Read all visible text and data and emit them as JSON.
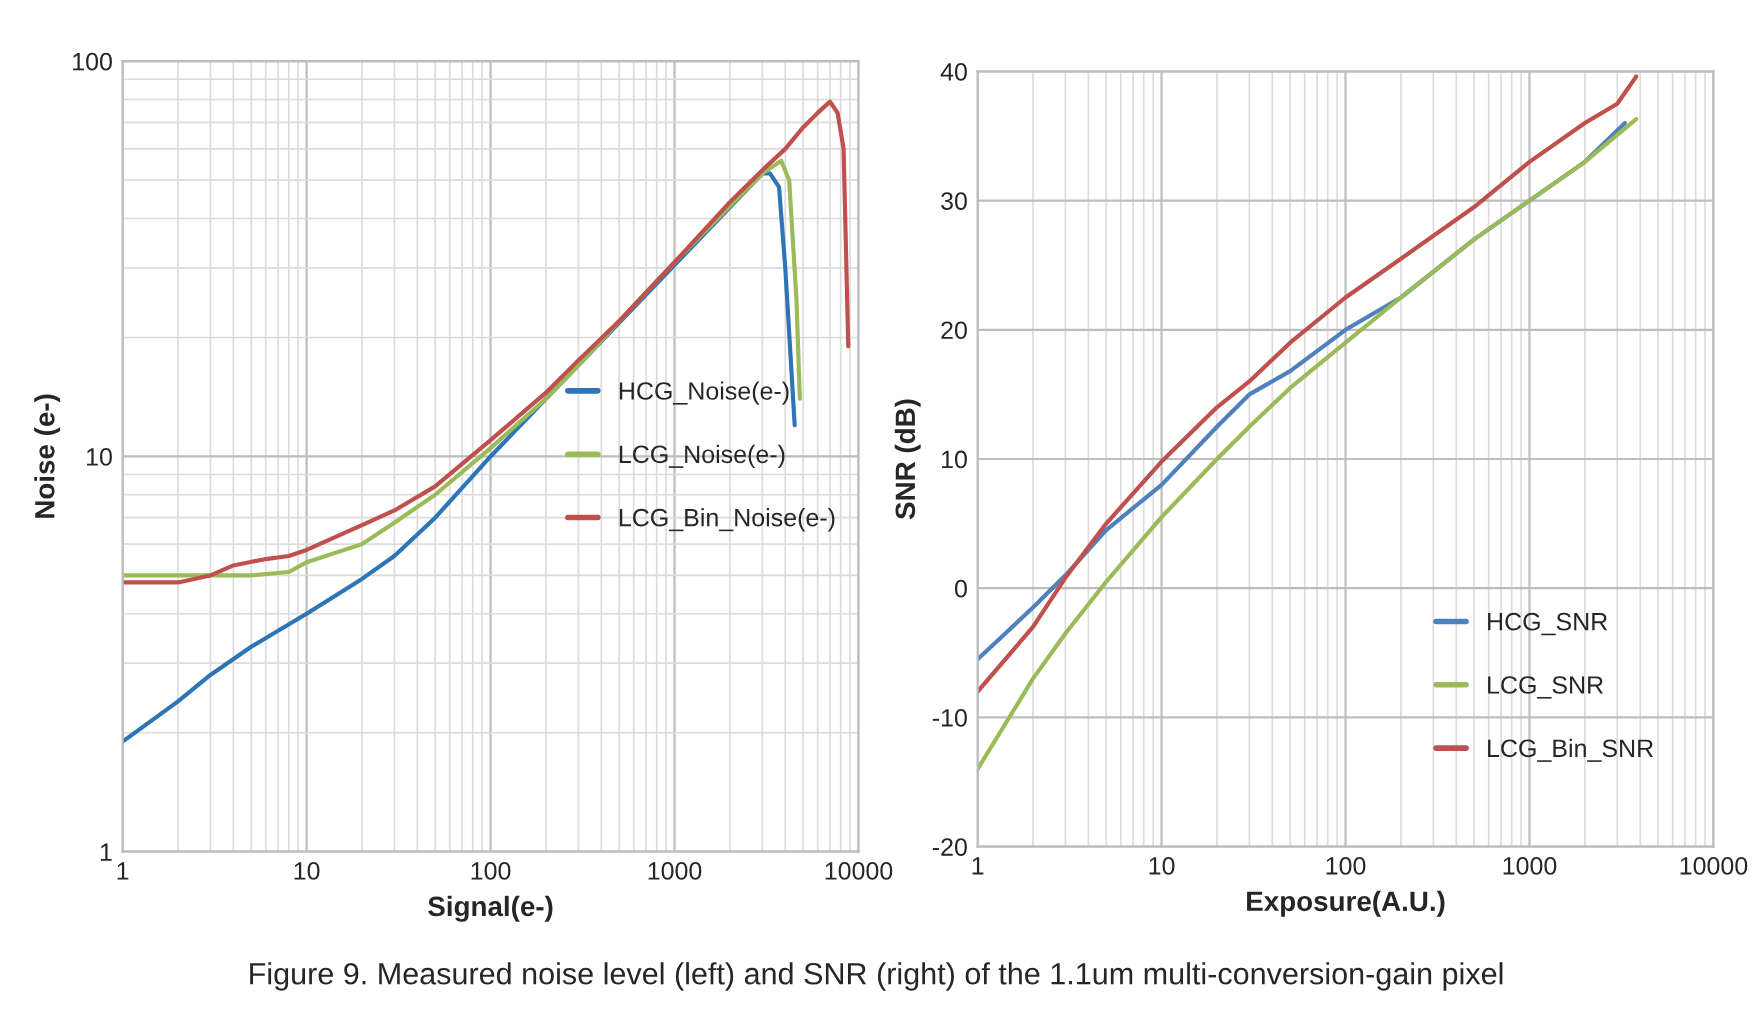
{
  "chart_data": [
    {
      "type": "line",
      "xlabel": "Signal(e-)",
      "ylabel": "Noise (e-)",
      "log": "xy",
      "xlim": [
        1,
        10000
      ],
      "ylim": [
        1,
        100
      ],
      "xticks": [
        1,
        10,
        100,
        1000,
        10000
      ],
      "yticks": [
        1,
        10,
        100
      ],
      "grid": true,
      "legend": "center right",
      "annotations": [
        "Figure 9. Measured noise level (left) and SNR (right) of the 1.1um multi-conversion-gain pixel"
      ],
      "series": [
        {
          "name": "HCG_Noise(e-)",
          "color": "#2e75b6",
          "x": [
            1,
            2,
            3,
            5,
            10,
            20,
            30,
            50,
            100,
            200,
            300,
            500,
            1000,
            2000,
            3000,
            3300,
            3700,
            4000,
            4500
          ],
          "values": [
            1.9,
            2.4,
            2.8,
            3.3,
            4.0,
            4.9,
            5.6,
            7.0,
            10,
            14,
            17,
            null,
            null,
            null,
            52,
            52,
            48,
            30,
            12
          ]
        },
        {
          "name": "LCG_Noise(e-)",
          "color": "#9bbb59",
          "x": [
            1,
            2,
            5,
            8,
            10,
            20,
            30,
            50,
            100,
            200,
            300,
            500,
            1000,
            2000,
            3000,
            3800,
            4200,
            4600,
            4800
          ],
          "values": [
            5.0,
            5.0,
            5.0,
            5.1,
            5.4,
            6.0,
            6.8,
            8.0,
            10.5,
            14,
            17,
            22,
            31,
            43,
            52,
            56,
            50,
            25,
            14
          ]
        },
        {
          "name": "LCG_Bin_Noise(e-)",
          "color": "#c0504d",
          "x": [
            1,
            2,
            3,
            4,
            6,
            8,
            10,
            20,
            30,
            50,
            100,
            200,
            300,
            500,
            1000,
            2000,
            3000,
            4000,
            5000,
            6000,
            7000,
            7700,
            8300,
            8800
          ],
          "values": [
            4.8,
            4.8,
            5.0,
            5.3,
            5.5,
            5.6,
            5.8,
            6.7,
            7.3,
            8.4,
            11,
            14.5,
            17.5,
            22,
            31,
            44,
            53,
            60,
            68,
            74,
            79,
            74,
            60,
            19
          ]
        }
      ]
    },
    {
      "type": "line",
      "xlabel": "Exposure(A.U.)",
      "ylabel": "SNR (dB)",
      "log": "x",
      "xlim": [
        1,
        10000
      ],
      "ylim": [
        -20,
        40
      ],
      "xticks": [
        1,
        10,
        100,
        1000,
        10000
      ],
      "yticks": [
        -20,
        -10,
        0,
        10,
        20,
        30,
        40
      ],
      "grid": true,
      "legend": "lower right",
      "series": [
        {
          "name": "HCG_SNR",
          "color": "#4f81bd",
          "x": [
            1,
            2,
            3,
            5,
            10,
            20,
            30,
            50,
            100,
            200,
            500,
            1000,
            2000,
            3300
          ],
          "values": [
            -5.5,
            -1.5,
            1,
            4.5,
            8,
            12.5,
            15,
            16.8,
            20,
            22.5,
            27,
            30,
            33,
            36
          ]
        },
        {
          "name": "LCG_SNR",
          "color": "#9bbb59",
          "x": [
            1,
            2,
            3,
            5,
            10,
            20,
            30,
            50,
            100,
            200,
            500,
            1000,
            2000,
            3800
          ],
          "values": [
            -14,
            -7,
            -3.5,
            0.5,
            5.5,
            10,
            12.5,
            15.5,
            19,
            22.5,
            27,
            30,
            33,
            36.3
          ]
        },
        {
          "name": "LCG_Bin_SNR",
          "color": "#c0504d",
          "x": [
            1,
            2,
            3,
            5,
            10,
            20,
            30,
            50,
            100,
            200,
            500,
            1000,
            2000,
            3000,
            3800
          ],
          "values": [
            -8,
            -3,
            0.8,
            5,
            9.8,
            14,
            16,
            19,
            22.5,
            25.5,
            29.5,
            33,
            36,
            37.5,
            39.6
          ]
        }
      ]
    }
  ]
}
